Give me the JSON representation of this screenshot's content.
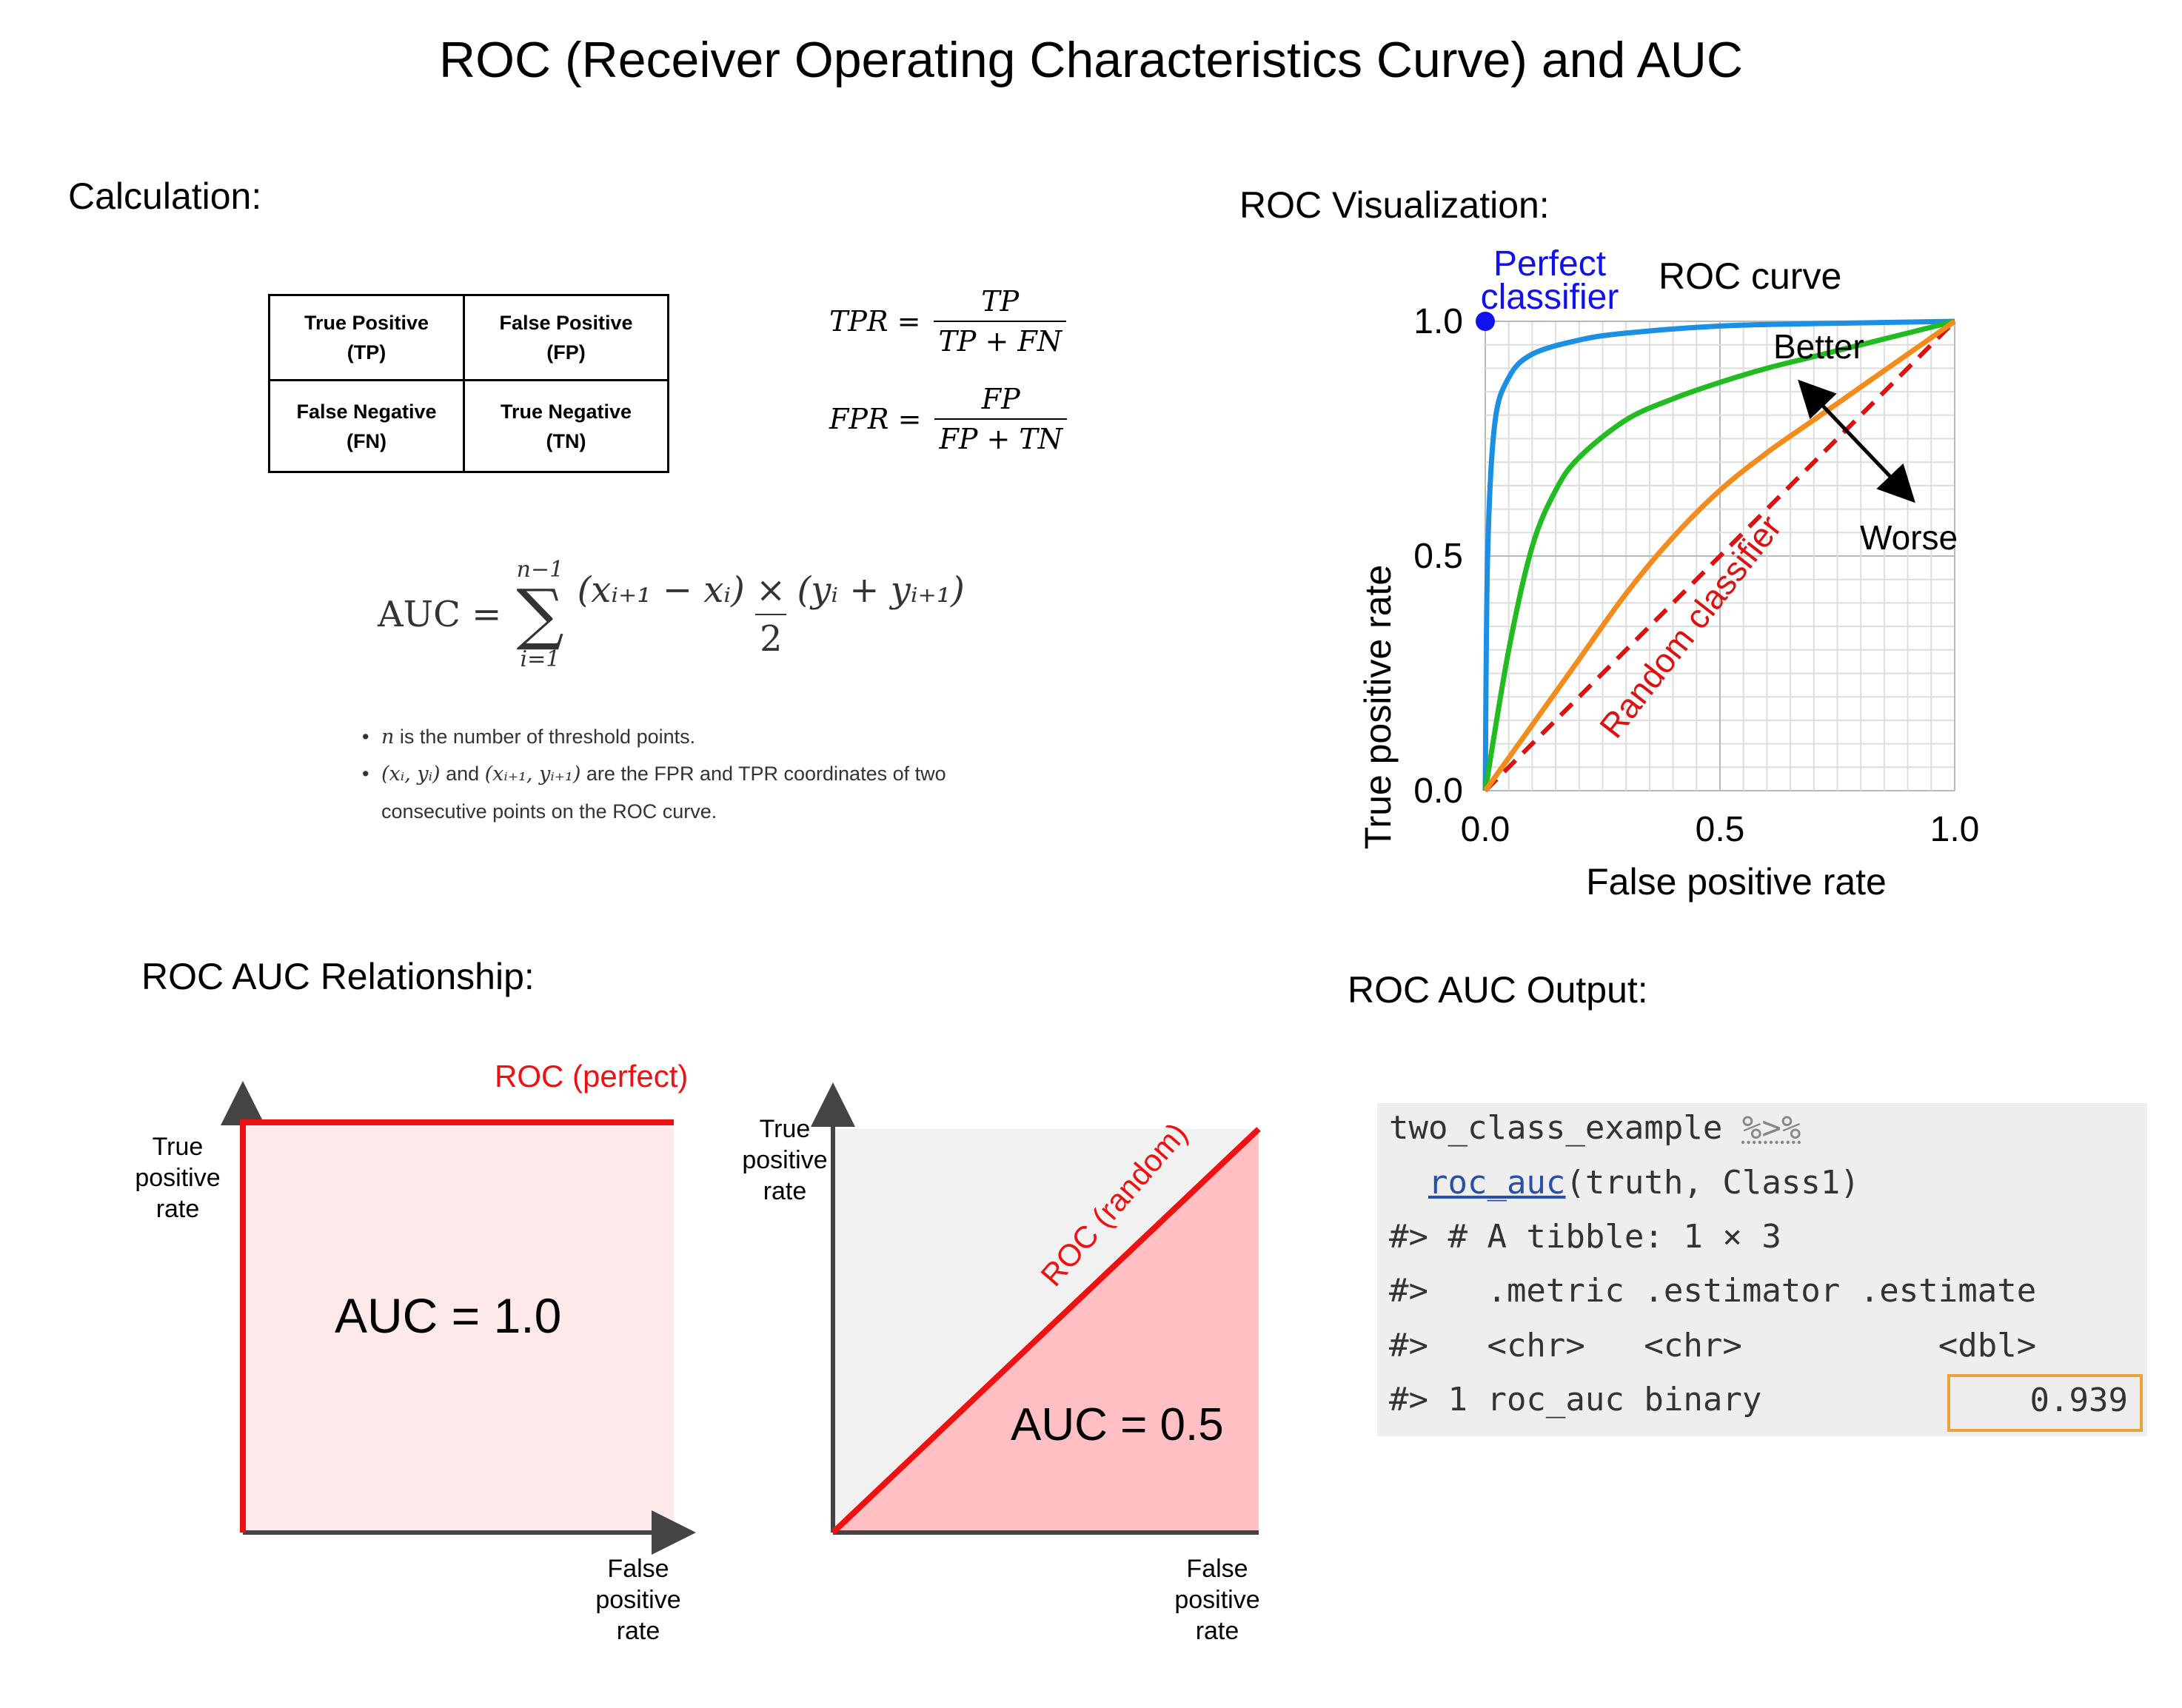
{
  "title": "ROC (Receiver Operating Characteristics Curve) and AUC",
  "calculation": {
    "heading": "Calculation:",
    "confusion_matrix": [
      [
        "True Positive",
        "(TP)"
      ],
      [
        "False Positive",
        "(FP)"
      ],
      [
        "False Negative",
        "(FN)"
      ],
      [
        "True Negative",
        "(TN)"
      ]
    ],
    "tpr": {
      "lhs": "TPR =",
      "num": "TP",
      "den": "TP + FN"
    },
    "fpr": {
      "lhs": "FPR =",
      "num": "FP",
      "den": "FP + TN"
    },
    "auc_formula": {
      "lhs": "AUC =",
      "sum_upper": "n−1",
      "sum_lower": "i=1",
      "numerator": "(xᵢ₊₁ − xᵢ) × (yᵢ + yᵢ₊₁)",
      "denominator": "2"
    },
    "bullets": [
      {
        "var": "n",
        "text": " is the number of threshold points."
      },
      {
        "var": "(xᵢ, yᵢ)",
        "mid": " and ",
        "var2": "(xᵢ₊₁, yᵢ₊₁)",
        "text": " are the FPR and TPR coordinates of two",
        "cont": "consecutive points on the ROC curve."
      }
    ]
  },
  "visualization": {
    "heading": "ROC Visualization:",
    "chart_data": {
      "type": "line",
      "title": "ROC curve",
      "xlabel": "False positive rate",
      "ylabel": "True positive rate",
      "xlim": [
        0,
        1
      ],
      "ylim": [
        0,
        1
      ],
      "xticks": [
        "0.0",
        "0.5",
        "1.0"
      ],
      "yticks": [
        "0.0",
        "0.5",
        "1.0"
      ],
      "grid": true,
      "series": [
        {
          "color": "#1a8fe3",
          "x": [
            0,
            0.005,
            0.02,
            0.05,
            0.1,
            0.2,
            0.3,
            0.5,
            0.7,
            1.0
          ],
          "y": [
            0,
            0.5,
            0.78,
            0.88,
            0.93,
            0.96,
            0.975,
            0.99,
            0.995,
            1.0
          ]
        },
        {
          "color": "#22bb22",
          "x": [
            0,
            0.05,
            0.1,
            0.15,
            0.2,
            0.3,
            0.4,
            0.5,
            0.6,
            0.7,
            0.8,
            0.9,
            1.0
          ],
          "y": [
            0,
            0.3,
            0.52,
            0.64,
            0.71,
            0.79,
            0.835,
            0.87,
            0.9,
            0.925,
            0.95,
            0.975,
            1.0
          ]
        },
        {
          "color": "#f28c1c",
          "x": [
            0,
            0.1,
            0.2,
            0.3,
            0.4,
            0.5,
            0.6,
            0.7,
            0.8,
            0.9,
            1.0
          ],
          "y": [
            0,
            0.14,
            0.28,
            0.42,
            0.54,
            0.64,
            0.72,
            0.79,
            0.86,
            0.93,
            1.0
          ]
        }
      ],
      "random_line": {
        "color": "#dd1111",
        "label": "Random classifier",
        "x": [
          0,
          1
        ],
        "y": [
          0,
          1
        ]
      },
      "perfect_point": {
        "color": "#1111ee",
        "x": 0,
        "y": 1,
        "label_line1": "Perfect",
        "label_line2": "classifier"
      },
      "annotations": {
        "better": "Better",
        "worse": "Worse"
      }
    }
  },
  "relationship": {
    "heading": "ROC AUC Relationship:",
    "perfect": {
      "roc_label": "ROC (perfect)",
      "auc_label": "AUC = 1.0",
      "auc_value": 1.0,
      "ylabel": [
        "True",
        "positive",
        "rate"
      ],
      "xlabel": [
        "False",
        "positive",
        "rate"
      ]
    },
    "random": {
      "roc_label": "ROC (random)",
      "auc_label": "AUC = 0.5",
      "auc_value": 0.5,
      "ylabel": [
        "True",
        "positive",
        "rate"
      ],
      "xlabel": [
        "False",
        "positive",
        "rate"
      ]
    }
  },
  "output": {
    "heading": "ROC AUC Output:",
    "line1_obj": "two_class_example",
    "line1_pipe": "%>%",
    "line2_fn": "roc_auc",
    "line2_args": "(truth, Class1)",
    "line3": "#> # A tibble: 1 × 3",
    "line4": "#>   .metric .estimator .estimate",
    "line5": "#>   <chr>   <chr>          <dbl>",
    "line6_prefix": "#> 1 roc_auc binary",
    "estimate": "0.939"
  }
}
